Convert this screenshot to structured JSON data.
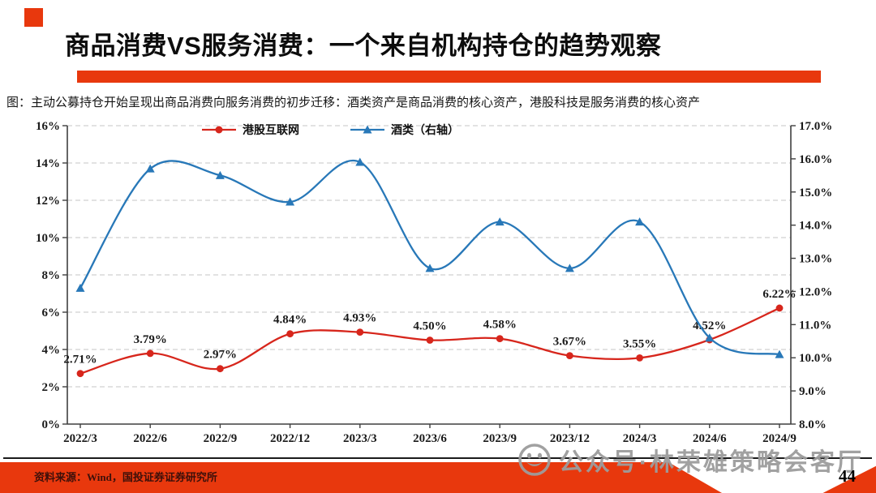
{
  "slide": {
    "title": "商品消费VS服务消费：一个来自机构持仓的趋势观察",
    "caption": "图：主动公募持仓开始呈现出商品消费向服务消费的初步迁移：酒类资产是商品消费的核心资产，港股科技是服务消费的核心资产",
    "source": "资料来源：Wind，国投证券证券研究所",
    "watermark": "公众号·林荣雄策略会客厅",
    "page_number": "44",
    "accent_color": "#e8380d"
  },
  "chart_data": {
    "type": "line",
    "categories": [
      "2022/3",
      "2022/6",
      "2022/9",
      "2022/12",
      "2023/3",
      "2023/6",
      "2023/9",
      "2023/12",
      "2024/3",
      "2024/6",
      "2024/9"
    ],
    "series": [
      {
        "name": "港股互联网",
        "axis": "left",
        "color": "#d7261c",
        "marker": "circle",
        "values": [
          2.71,
          3.79,
          2.97,
          4.84,
          4.93,
          4.5,
          4.58,
          3.67,
          3.55,
          4.52,
          6.22
        ],
        "point_labels": [
          "2.71%",
          "3.79%",
          "2.97%",
          "4.84%",
          "4.93%",
          "4.50%",
          "4.58%",
          "3.67%",
          "3.55%",
          "4.52%",
          "6.22%"
        ]
      },
      {
        "name": "酒类（右轴）",
        "axis": "right",
        "color": "#2878b8",
        "marker": "triangle",
        "values": [
          12.1,
          15.7,
          15.5,
          14.7,
          15.9,
          12.7,
          14.1,
          12.7,
          14.1,
          10.6,
          10.1
        ],
        "point_labels": []
      }
    ],
    "left_axis": {
      "min": 0,
      "max": 16,
      "tick_step": 2,
      "labels": [
        "0%",
        "2%",
        "4%",
        "6%",
        "8%",
        "10%",
        "12%",
        "14%",
        "16%"
      ]
    },
    "right_axis": {
      "min": 8,
      "max": 17,
      "tick_step": 1,
      "labels": [
        "8.0%",
        "9.0%",
        "10.0%",
        "11.0%",
        "12.0%",
        "13.0%",
        "14.0%",
        "15.0%",
        "16.0%",
        "17.0%"
      ]
    },
    "grid": "horizontal-dashed",
    "legend_position": "top",
    "title": "",
    "xlabel": "",
    "ylabel": ""
  }
}
